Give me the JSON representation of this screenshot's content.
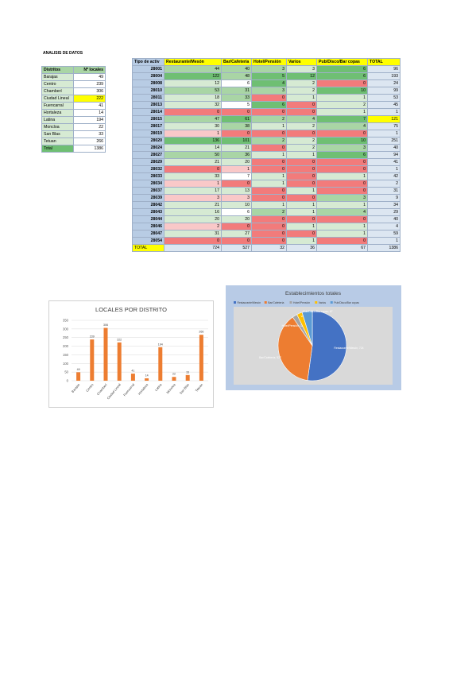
{
  "page_title": "ANALISIS DE DATOS",
  "colors": {
    "blue_cell": "#b8cce4",
    "header_yellow": "#ffff00",
    "green_strong": "#6fbf73",
    "green_mid": "#a9d5a5",
    "green_light": "#d6ead3",
    "red_strong": "#f27b7b",
    "red_light": "#f9c8c8",
    "bar": "#ed7d31",
    "pie_blue": "#4472c4",
    "pie_orange": "#ed7d31",
    "pie_gray": "#a5a5a5",
    "pie_yellow": "#ffc000",
    "pie_lightblue": "#5b9bd5"
  },
  "district_table": {
    "headers": [
      "Distritos",
      "Nº locales"
    ],
    "rows": [
      {
        "name": "Barajas",
        "value": "49"
      },
      {
        "name": "Centro",
        "value": "239"
      },
      {
        "name": "Chamberí",
        "value": "306"
      },
      {
        "name": "Ciudad Lineal",
        "value": "222"
      },
      {
        "name": "Fuencarral",
        "value": "41"
      },
      {
        "name": "Hortaleza",
        "value": "14"
      },
      {
        "name": "Latina",
        "value": "194"
      },
      {
        "name": "Moncloa",
        "value": "22"
      },
      {
        "name": "San Blas",
        "value": "33"
      },
      {
        "name": "Tetuan",
        "value": "266"
      },
      {
        "name": "Total",
        "value": "1386"
      }
    ]
  },
  "main_table": {
    "headers": [
      "Tipo de activ",
      "Restaurante/Mesón",
      "Bar/Cafetería",
      "Hotel/Pensión",
      "Varios",
      "Pub/Disco/Bar copas",
      "TOTAL"
    ],
    "rows": [
      [
        "28001",
        "44",
        "40",
        "3",
        "3",
        "6",
        "96"
      ],
      [
        "28004",
        "122",
        "48",
        "5",
        "12",
        "6",
        "193"
      ],
      [
        "28008",
        "12",
        "6",
        "4",
        "2",
        "0",
        "24"
      ],
      [
        "28010",
        "53",
        "31",
        "3",
        "2",
        "10",
        "99"
      ],
      [
        "28011",
        "18",
        "33",
        "0",
        "1",
        "1",
        "53"
      ],
      [
        "28013",
        "32",
        "5",
        "6",
        "0",
        "2",
        "45"
      ],
      [
        "28014",
        "0",
        "0",
        "0",
        "0",
        "1",
        "1"
      ],
      [
        "28015",
        "47",
        "61",
        "2",
        "4",
        "7",
        "121"
      ],
      [
        "28017",
        "30",
        "38",
        "1",
        "2",
        "4",
        "75"
      ],
      [
        "28019",
        "1",
        "0",
        "0",
        "0",
        "0",
        "1"
      ],
      [
        "28020",
        "136",
        "101",
        "2",
        "2",
        "10",
        "251"
      ],
      [
        "28024",
        "14",
        "21",
        "0",
        "2",
        "3",
        "40"
      ],
      [
        "28027",
        "50",
        "36",
        "1",
        "1",
        "6",
        "94"
      ],
      [
        "28029",
        "21",
        "20",
        "0",
        "0",
        "0",
        "41"
      ],
      [
        "28032",
        "0",
        "1",
        "0",
        "0",
        "0",
        "1"
      ],
      [
        "28033",
        "33",
        "7",
        "1",
        "0",
        "1",
        "42"
      ],
      [
        "28034",
        "1",
        "0",
        "1",
        "0",
        "0",
        "2"
      ],
      [
        "28037",
        "17",
        "13",
        "0",
        "1",
        "0",
        "31"
      ],
      [
        "28039",
        "3",
        "3",
        "0",
        "0",
        "3",
        "9"
      ],
      [
        "28042",
        "21",
        "10",
        "1",
        "1",
        "1",
        "34"
      ],
      [
        "28043",
        "16",
        "6",
        "2",
        "1",
        "4",
        "29"
      ],
      [
        "28044",
        "20",
        "20",
        "0",
        "0",
        "0",
        "40"
      ],
      [
        "28046",
        "2",
        "0",
        "0",
        "1",
        "1",
        "4"
      ],
      [
        "28047",
        "31",
        "27",
        "0",
        "0",
        "1",
        "59"
      ],
      [
        "28054",
        "0",
        "0",
        "0",
        "1",
        "0",
        "1"
      ]
    ],
    "total_row": [
      "TOTAL",
      "724",
      "527",
      "32",
      "36",
      "67",
      "1386"
    ]
  },
  "chart_data": [
    {
      "type": "bar",
      "title": "LOCALES POR DISTRITO",
      "categories": [
        "Barajas",
        "Centro",
        "Chamberí",
        "Ciudad Lineal",
        "Fuencarral",
        "Hortaleza",
        "Latina",
        "Moncloa",
        "San Blas",
        "Tetuan"
      ],
      "values": [
        49,
        239,
        306,
        222,
        41,
        14,
        194,
        22,
        33,
        266
      ],
      "ylim": [
        0,
        350
      ],
      "yticks": [
        "0",
        "50",
        "100",
        "150",
        "200",
        "250",
        "300",
        "350"
      ],
      "grid": true
    },
    {
      "type": "pie",
      "title": "Establecimientos totales",
      "legend": "top",
      "slices": [
        {
          "name": "Restaurante/Mesón",
          "value": 724,
          "label": "Restaurante/Mesón; 724"
        },
        {
          "name": "Bar/Cafetería",
          "value": 527,
          "label": "Bar/Cafetería; 527"
        },
        {
          "name": "Hotel/Pensión",
          "value": 32,
          "label": "Hotel/Pensión; 32"
        },
        {
          "name": "Varios",
          "value": 36,
          "label": "Varios; 36"
        },
        {
          "name": "Pub/Disco/Bar copas",
          "value": 67,
          "label": "Pub/Disco/Bar copas; 67"
        }
      ]
    }
  ]
}
